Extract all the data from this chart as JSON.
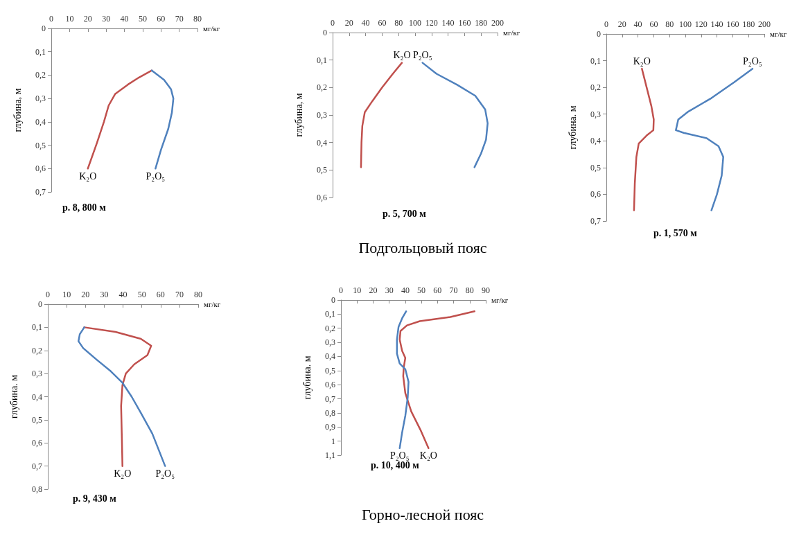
{
  "chart_data": [
    {
      "type": "line",
      "title": "р. 8, 800 м",
      "xlabel": "мг/кг",
      "ylabel": "глубина, м",
      "marker": "none",
      "xlim": [
        0,
        80
      ],
      "xticks": [
        0,
        10,
        20,
        30,
        40,
        50,
        60,
        70,
        80
      ],
      "ylim": [
        0.7,
        0
      ],
      "yticks": [
        {
          "value": 0,
          "label": "0"
        },
        {
          "value": 0.1,
          "label": "0,1"
        },
        {
          "value": 0.2,
          "label": "0,2"
        },
        {
          "value": 0.3,
          "label": "0,3"
        },
        {
          "value": 0.4,
          "label": "0,4"
        },
        {
          "value": 0.5,
          "label": "0,5"
        },
        {
          "value": 0.6,
          "label": "0,6"
        },
        {
          "value": 0.7,
          "label": "0,7"
        }
      ],
      "series": [
        {
          "name": "K₂O",
          "color": "#c0504d",
          "x": [
            55,
            48,
            42,
            35,
            31.4,
            28.8,
            25,
            20
          ],
          "values": [
            0.18,
            0.21,
            0.24,
            0.28,
            0.33,
            0.4,
            0.49,
            0.6
          ]
        },
        {
          "name": "P₂O₅",
          "color": "#4f81bd",
          "x": [
            55,
            61.7,
            65.5,
            66.8,
            66,
            64,
            60,
            57
          ],
          "values": [
            0.18,
            0.22,
            0.26,
            0.3,
            0.36,
            0.43,
            0.52,
            0.6
          ]
        }
      ]
    },
    {
      "type": "line",
      "title": "р. 5, 700 м",
      "xlabel": "мг/кг",
      "ylabel": "глубина, м",
      "marker": "none",
      "annotations": [
        "Подгольцовый пояс"
      ],
      "xlim": [
        0,
        200
      ],
      "xticks": [
        0,
        20,
        40,
        60,
        80,
        100,
        120,
        140,
        160,
        180,
        200
      ],
      "ylim": [
        0.6,
        0
      ],
      "yticks": [
        {
          "value": 0,
          "label": "0"
        },
        {
          "value": 0.1,
          "label": "0,1"
        },
        {
          "value": 0.2,
          "label": "0,2"
        },
        {
          "value": 0.3,
          "label": "0,3"
        },
        {
          "value": 0.4,
          "label": "0,4"
        },
        {
          "value": 0.5,
          "label": "0,5"
        },
        {
          "value": 0.6,
          "label": "0,6"
        }
      ],
      "series": [
        {
          "name": "K₂O",
          "color": "#c0504d",
          "x": [
            84,
            73,
            60,
            48,
            39,
            36,
            35,
            34.4
          ],
          "values": [
            0.11,
            0.15,
            0.2,
            0.25,
            0.29,
            0.34,
            0.4,
            0.49
          ]
        },
        {
          "name": "P₂O₅",
          "color": "#4f81bd",
          "x": [
            109,
            126,
            151,
            173,
            185,
            188,
            186,
            180,
            172
          ],
          "values": [
            0.11,
            0.15,
            0.19,
            0.23,
            0.28,
            0.33,
            0.39,
            0.44,
            0.49
          ]
        }
      ]
    },
    {
      "type": "line",
      "title": "р. 1, 570 м",
      "xlabel": "мг/кг",
      "ylabel": "глубина. м",
      "marker": "none",
      "xlim": [
        0,
        200
      ],
      "xticks": [
        0,
        20,
        40,
        60,
        80,
        100,
        120,
        140,
        160,
        180,
        200
      ],
      "ylim": [
        0.7,
        0
      ],
      "yticks": [
        {
          "value": 0,
          "label": "0"
        },
        {
          "value": 0.1,
          "label": "0,1"
        },
        {
          "value": 0.2,
          "label": "0,2"
        },
        {
          "value": 0.3,
          "label": "0,3"
        },
        {
          "value": 0.4,
          "label": "0,4"
        },
        {
          "value": 0.5,
          "label": "0,5"
        },
        {
          "value": 0.6,
          "label": "0,6"
        },
        {
          "value": 0.7,
          "label": "0,7"
        }
      ],
      "series": [
        {
          "name": "K₂O",
          "color": "#c0504d",
          "x": [
            45,
            51,
            57,
            60,
            59.5,
            51,
            41,
            38,
            36,
            35
          ],
          "values": [
            0.13,
            0.2,
            0.27,
            0.32,
            0.36,
            0.38,
            0.41,
            0.46,
            0.56,
            0.66
          ]
        },
        {
          "name": "P₂O₅",
          "color": "#4f81bd",
          "x": [
            185,
            162,
            133,
            104,
            91,
            88,
            98,
            127,
            142,
            148,
            146,
            140,
            133
          ],
          "values": [
            0.13,
            0.18,
            0.24,
            0.29,
            0.32,
            0.36,
            0.37,
            0.39,
            0.42,
            0.46,
            0.53,
            0.6,
            0.66
          ]
        }
      ]
    },
    {
      "type": "line",
      "title": "р. 9, 430 м",
      "xlabel": "мг/кг",
      "ylabel": "глубина. м",
      "marker": "none",
      "xlim": [
        0,
        80
      ],
      "xticks": [
        0,
        10,
        20,
        30,
        40,
        50,
        60,
        70,
        80
      ],
      "ylim": [
        0.8,
        0
      ],
      "yticks": [
        {
          "value": 0,
          "label": "0"
        },
        {
          "value": 0.1,
          "label": "0,1"
        },
        {
          "value": 0.2,
          "label": "0,2"
        },
        {
          "value": 0.3,
          "label": "0,3"
        },
        {
          "value": 0.4,
          "label": "0,4"
        },
        {
          "value": 0.5,
          "label": "0,5"
        },
        {
          "value": 0.6,
          "label": "0,6"
        },
        {
          "value": 0.7,
          "label": "0,7"
        },
        {
          "value": 0.8,
          "label": "0,8"
        }
      ],
      "series": [
        {
          "name": "K₂O",
          "color": "#c0504d",
          "x": [
            19.4,
            36,
            49.5,
            55,
            53,
            46,
            41.5,
            39.7,
            39,
            39.4,
            39.7
          ],
          "values": [
            0.1,
            0.12,
            0.15,
            0.18,
            0.22,
            0.26,
            0.3,
            0.35,
            0.44,
            0.58,
            0.7
          ]
        },
        {
          "name": "P₂O₅",
          "color": "#4f81bd",
          "x": [
            19.4,
            17,
            16.3,
            18.8,
            26,
            33.5,
            39.7,
            44.6,
            49.5,
            55.6,
            62.4
          ],
          "values": [
            0.1,
            0.13,
            0.16,
            0.19,
            0.24,
            0.29,
            0.34,
            0.4,
            0.47,
            0.56,
            0.7
          ]
        }
      ]
    },
    {
      "type": "line",
      "title": "р. 10, 400 м",
      "xlabel": "мг/кг",
      "ylabel": "глубина. м",
      "marker": "none",
      "annotations": [
        "Горно-лесной пояс"
      ],
      "xlim": [
        0,
        90
      ],
      "xticks": [
        0,
        10,
        20,
        30,
        40,
        50,
        60,
        70,
        80,
        90
      ],
      "ylim": [
        1.1,
        0
      ],
      "yticks": [
        {
          "value": 0,
          "label": "0"
        },
        {
          "value": 0.1,
          "label": "0,1"
        },
        {
          "value": 0.2,
          "label": "0,2"
        },
        {
          "value": 0.3,
          "label": "0,3"
        },
        {
          "value": 0.4,
          "label": "0,4"
        },
        {
          "value": 0.5,
          "label": "0,5"
        },
        {
          "value": 0.6,
          "label": "0,6"
        },
        {
          "value": 0.7,
          "label": "0,7"
        },
        {
          "value": 0.8,
          "label": "0,8"
        },
        {
          "value": 0.9,
          "label": "0,9"
        },
        1,
        {
          "value": 1.1,
          "label": "1,1"
        }
      ],
      "series": [
        {
          "name": "K₂O",
          "color": "#c0504d",
          "x": [
            83,
            68,
            49,
            41,
            37,
            36.5,
            38,
            40,
            39,
            38.7,
            40,
            43.7,
            49.4,
            54.4
          ],
          "values": [
            0.08,
            0.12,
            0.15,
            0.18,
            0.22,
            0.28,
            0.36,
            0.41,
            0.48,
            0.54,
            0.66,
            0.79,
            0.92,
            1.05
          ]
        },
        {
          "name": "P₂O₅",
          "color": "#4f81bd",
          "x": [
            40.5,
            38,
            35.8,
            34.8,
            34.8,
            36.5,
            40,
            42,
            41.5,
            40,
            38,
            36.5
          ],
          "values": [
            0.08,
            0.13,
            0.19,
            0.28,
            0.38,
            0.45,
            0.49,
            0.58,
            0.69,
            0.82,
            0.94,
            1.05
          ]
        }
      ]
    }
  ]
}
